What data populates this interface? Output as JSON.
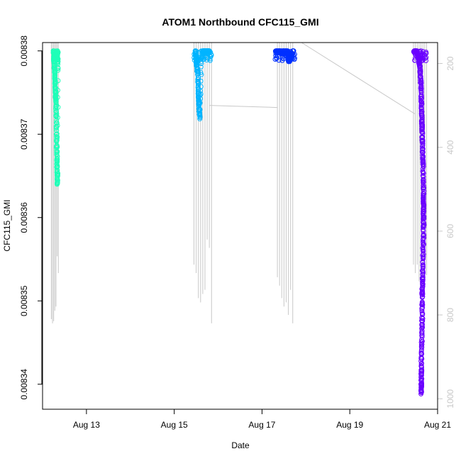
{
  "chart_data": {
    "type": "scatter",
    "title": "ATOM1 Northbound CFC115_GMI",
    "xlabel": "Date",
    "ylabel": "CFC115_GMI",
    "x_ticks": [
      "Aug 13",
      "Aug 15",
      "Aug 17",
      "Aug 19",
      "Aug 21"
    ],
    "x_tick_days": [
      13,
      15,
      17,
      19,
      21
    ],
    "xlim_days": [
      12.0,
      21.0
    ],
    "ylim": [
      0.008337,
      0.008381
    ],
    "y_ticks": [
      0.00834,
      0.00835,
      0.00836,
      0.00837,
      0.00838
    ],
    "y_tick_labels": [
      "0.00834",
      "0.00835",
      "0.00836",
      "0.00837",
      "0.00838"
    ],
    "secondary_axis": {
      "label": "",
      "lim": [
        1025,
        150
      ],
      "ticks": [
        200,
        400,
        600,
        800,
        1000
      ],
      "color": "#c8c8c8"
    },
    "series": [
      {
        "color": "#1effb8",
        "x_range_days": [
          12.25,
          12.35
        ],
        "points": [
          [
            12.25,
            0.00838
          ],
          [
            12.26,
            0.008379
          ],
          [
            12.27,
            0.008378
          ],
          [
            12.28,
            0.008377
          ],
          [
            12.29,
            0.008376
          ],
          [
            12.3,
            0.008375
          ],
          [
            12.3,
            0.008374
          ],
          [
            12.31,
            0.008373
          ],
          [
            12.32,
            0.008371
          ],
          [
            12.32,
            0.008369
          ],
          [
            12.33,
            0.008367
          ],
          [
            12.33,
            0.008366
          ],
          [
            12.34,
            0.008365
          ],
          [
            12.34,
            0.008364
          ],
          [
            12.35,
            0.00838
          ],
          [
            12.35,
            0.008378
          ]
        ]
      },
      {
        "color": "#00b4ff",
        "x_range_days": [
          15.45,
          15.85
        ],
        "points": [
          [
            15.48,
            0.00838
          ],
          [
            15.5,
            0.008379
          ],
          [
            15.52,
            0.008378
          ],
          [
            15.54,
            0.008377
          ],
          [
            15.55,
            0.008375
          ],
          [
            15.56,
            0.008374
          ],
          [
            15.57,
            0.008373
          ],
          [
            15.58,
            0.008372
          ],
          [
            15.62,
            0.008379
          ],
          [
            15.66,
            0.00838
          ],
          [
            15.7,
            0.00838
          ],
          [
            15.75,
            0.00838
          ],
          [
            15.8,
            0.00838
          ]
        ]
      },
      {
        "color": "#0030ff",
        "x_range_days": [
          17.3,
          17.75
        ],
        "points": [
          [
            17.32,
            0.00838
          ],
          [
            17.38,
            0.00838
          ],
          [
            17.45,
            0.00838
          ],
          [
            17.52,
            0.00838
          ],
          [
            17.58,
            0.00838
          ],
          [
            17.6,
            0.008379
          ],
          [
            17.62,
            0.008379
          ],
          [
            17.64,
            0.008379
          ],
          [
            17.7,
            0.00838
          ]
        ]
      },
      {
        "color": "#6a00ff",
        "x_range_days": [
          20.45,
          20.75
        ],
        "points": [
          [
            20.47,
            0.00838
          ],
          [
            20.52,
            0.00838
          ],
          [
            20.57,
            0.008379
          ],
          [
            20.6,
            0.008378
          ],
          [
            20.62,
            0.008376
          ],
          [
            20.63,
            0.008374
          ],
          [
            20.64,
            0.008372
          ],
          [
            20.65,
            0.00837
          ],
          [
            20.66,
            0.008368
          ],
          [
            20.67,
            0.008366
          ],
          [
            20.68,
            0.008363
          ],
          [
            20.68,
            0.008361
          ],
          [
            20.68,
            0.008359
          ],
          [
            20.67,
            0.008356
          ],
          [
            20.66,
            0.008353
          ],
          [
            20.65,
            0.008351
          ],
          [
            20.65,
            0.008348
          ],
          [
            20.64,
            0.008345
          ],
          [
            20.63,
            0.008342
          ],
          [
            20.63,
            0.00834
          ],
          [
            20.63,
            0.008339
          ]
        ]
      }
    ],
    "grid": false,
    "legend": "none"
  }
}
